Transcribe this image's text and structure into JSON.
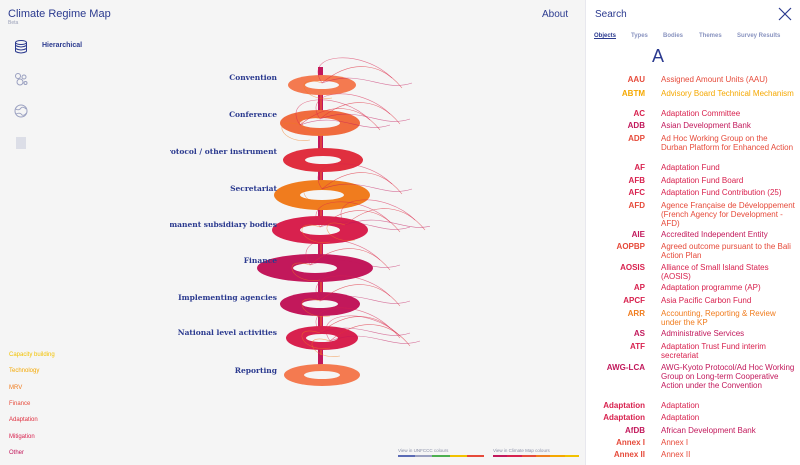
{
  "app": {
    "title": "Climate Regime Map",
    "subtitle": "Beta"
  },
  "nav": {
    "about": "About",
    "search": "Search"
  },
  "mode": {
    "label": "Hierarchical"
  },
  "diagram": {
    "categories": [
      "Convention",
      "Conference",
      "Protocol / other instrument",
      "Secretariat",
      "Permanent subsidiary bodies",
      "Finance",
      "Implementing agencies",
      "National level activities",
      "Reporting"
    ]
  },
  "legend": [
    {
      "label": "Capacity building",
      "color": "#f2c200"
    },
    {
      "label": "Technology",
      "color": "#f5a800"
    },
    {
      "label": "MRV",
      "color": "#f07c1e"
    },
    {
      "label": "Finance",
      "color": "#e64a3a"
    },
    {
      "label": "Adaptation",
      "color": "#e02f3f"
    },
    {
      "label": "Mitigation",
      "color": "#d8214e"
    },
    {
      "label": "Other",
      "color": "#c2185b"
    }
  ],
  "views": {
    "unfccc": "View in UNFCCC colours",
    "climate_map": "View in Climate Map colours"
  },
  "panel": {
    "tabs": [
      "Objects",
      "Types",
      "Bodies",
      "Themes",
      "Survey Results"
    ],
    "letter": "A",
    "entries": [
      {
        "abbr": "AAU",
        "name": "Assigned Amount Units (AAU)",
        "color": "#e64a3a"
      },
      {
        "abbr": "ABTM",
        "name": "Advisory Board Technical Mechanism",
        "color": "#f5a800"
      },
      {
        "abbr": "AC",
        "name": "Adaptation Committee",
        "color": "#d8214e"
      },
      {
        "abbr": "ADB",
        "name": "Asian Development Bank",
        "color": "#c2185b"
      },
      {
        "abbr": "ADP",
        "name": "Ad Hoc Working Group on the Durban Platform for Enhanced Action",
        "color": "#e64a3a"
      },
      {
        "abbr": "AF",
        "name": "Adaptation Fund",
        "color": "#d8214e"
      },
      {
        "abbr": "AFB",
        "name": "Adaptation Fund Board",
        "color": "#d8214e"
      },
      {
        "abbr": "AFC",
        "name": "Adaptation Fund Contribution (25)",
        "color": "#d8214e"
      },
      {
        "abbr": "AFD",
        "name": "Agence Française de Développement (French Agency for Development - AFD)",
        "color": "#e64a3a"
      },
      {
        "abbr": "AIE",
        "name": "Accredited Independent Entity",
        "color": "#c2185b"
      },
      {
        "abbr": "AOPBP",
        "name": "Agreed outcome pursuant to the Bali Action Plan",
        "color": "#e64a3a"
      },
      {
        "abbr": "AOSIS",
        "name": "Alliance of Small Island States (AOSIS)",
        "color": "#d8214e"
      },
      {
        "abbr": "AP",
        "name": "Adaptation programme (AP)",
        "color": "#d8214e"
      },
      {
        "abbr": "APCF",
        "name": "Asia Pacific Carbon Fund",
        "color": "#d8214e"
      },
      {
        "abbr": "ARR",
        "name": "Accounting, Reporting & Review under the KP",
        "color": "#f07c1e"
      },
      {
        "abbr": "AS",
        "name": "Administrative Services",
        "color": "#c2185b"
      },
      {
        "abbr": "ATF",
        "name": "Adaptation Trust Fund interim secretariat",
        "color": "#d8214e"
      },
      {
        "abbr": "AWG-LCA",
        "name": "AWG-Kyoto Protocol/Ad Hoc Working Group on Long-term Cooperative Action under the Convention",
        "color": "#c2185b"
      },
      {
        "abbr": "Adaptation",
        "name": "Adaptation",
        "color": "#d8214e"
      },
      {
        "abbr": "Adaptation",
        "name": "Adaptation",
        "color": "#d8214e"
      },
      {
        "abbr": "AfDB",
        "name": "African Development Bank",
        "color": "#c2185b"
      },
      {
        "abbr": "Annex I",
        "name": "Annex I",
        "color": "#e64a3a"
      },
      {
        "abbr": "Annex II",
        "name": "Annex II",
        "color": "#e64a3a"
      }
    ]
  }
}
